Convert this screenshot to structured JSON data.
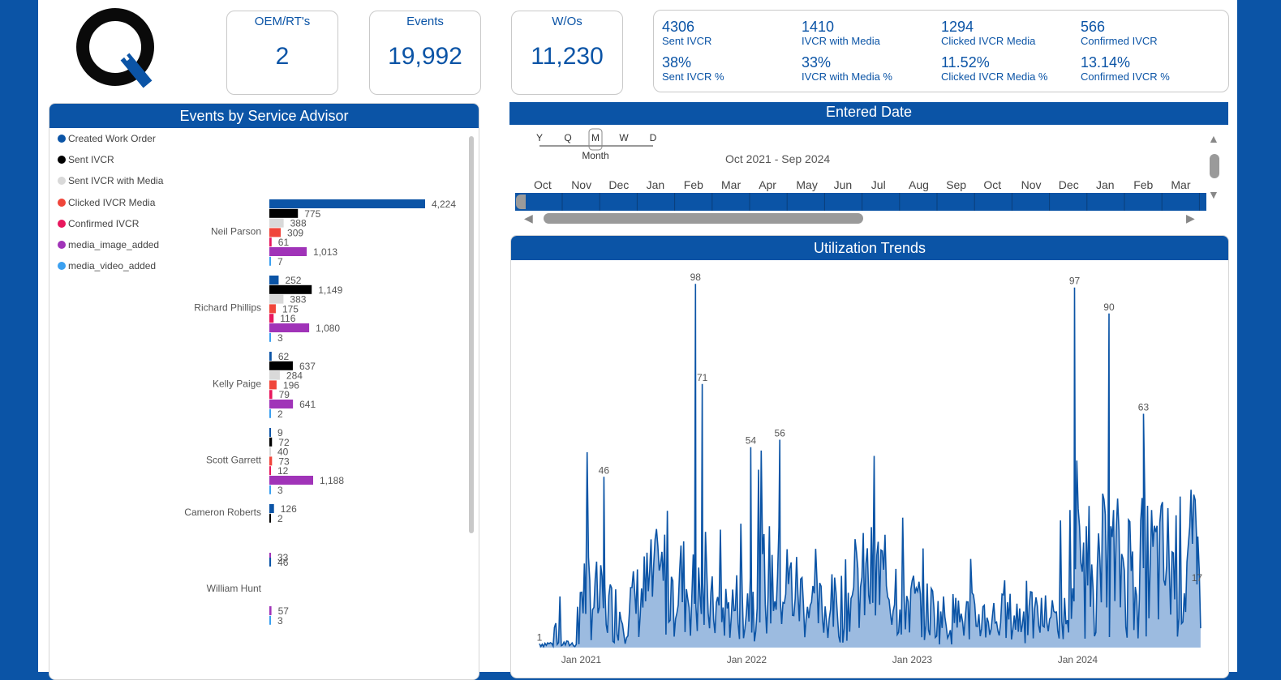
{
  "kpis": [
    {
      "label": "OEM/RT's",
      "value": "2"
    },
    {
      "label": "Events",
      "value": "19,992"
    },
    {
      "label": "W/Os",
      "value": "11,230"
    }
  ],
  "stats": [
    {
      "value": "4306",
      "label": "Sent IVCR"
    },
    {
      "value": "1410",
      "label": "IVCR with Media"
    },
    {
      "value": "1294",
      "label": "Clicked IVCR Media"
    },
    {
      "value": "566",
      "label": "Confirmed IVCR"
    },
    {
      "value": "38%",
      "label": "Sent IVCR %"
    },
    {
      "value": "33%",
      "label": "IVCR with Media %"
    },
    {
      "value": "11.52%",
      "label": "Clicked IVCR Media %"
    },
    {
      "value": "13.14%",
      "label": "Confirmed IVCR %"
    }
  ],
  "date_slicer": {
    "title": "Entered Date",
    "granularity": [
      "Y",
      "Q",
      "M",
      "W",
      "D"
    ],
    "selected_granularity": "Month",
    "range": "Oct 2021 - Sep 2024",
    "months": [
      "Oct",
      "Nov",
      "Dec",
      "Jan",
      "Feb",
      "Mar",
      "Apr",
      "May",
      "Jun",
      "Jul",
      "Aug",
      "Sep",
      "Oct",
      "Nov",
      "Dec",
      "Jan",
      "Feb",
      "Mar"
    ]
  },
  "colors": {
    "Created Work Order": "#0b54a6",
    "Sent IVCR": "#000000",
    "Sent IVCR with Media": "#d9d9d9",
    "Clicked IVCR Media": "#f0453a",
    "Confirmed IVCR": "#e8175d",
    "media_image_added": "#a033b8",
    "media_video_added": "#3ba0f0"
  },
  "chart_data": [
    {
      "type": "bar",
      "orientation": "horizontal",
      "title": "Events by Service Advisor",
      "legend": [
        "Created Work Order",
        "Sent IVCR",
        "Sent IVCR with Media",
        "Clicked IVCR Media",
        "Confirmed IVCR",
        "media_image_added",
        "media_video_added"
      ],
      "legend_position": "top-left",
      "groups": [
        {
          "name": "Neil Parson",
          "bars": [
            {
              "series": "Created Work Order",
              "value": 4224
            },
            {
              "series": "Sent IVCR",
              "value": 775
            },
            {
              "series": "Sent IVCR with Media",
              "value": 388
            },
            {
              "series": "Clicked IVCR Media",
              "value": 309
            },
            {
              "series": "Confirmed IVCR",
              "value": 61
            },
            {
              "series": "media_image_added",
              "value": 1013
            },
            {
              "series": "media_video_added",
              "value": 7
            }
          ]
        },
        {
          "name": "Richard Phillips",
          "bars": [
            {
              "series": "Created Work Order",
              "value": 252
            },
            {
              "series": "Sent IVCR",
              "value": 1149
            },
            {
              "series": "Sent IVCR with Media",
              "value": 383
            },
            {
              "series": "Clicked IVCR Media",
              "value": 175
            },
            {
              "series": "Confirmed IVCR",
              "value": 116
            },
            {
              "series": "media_image_added",
              "value": 1080
            },
            {
              "series": "media_video_added",
              "value": 3
            }
          ]
        },
        {
          "name": "Kelly Paige",
          "bars": [
            {
              "series": "Created Work Order",
              "value": 62
            },
            {
              "series": "Sent IVCR",
              "value": 637
            },
            {
              "series": "Sent IVCR with Media",
              "value": 284
            },
            {
              "series": "Clicked IVCR Media",
              "value": 196
            },
            {
              "series": "Confirmed IVCR",
              "value": 79
            },
            {
              "series": "media_image_added",
              "value": 641
            },
            {
              "series": "media_video_added",
              "value": 2
            }
          ]
        },
        {
          "name": "Scott Garrett",
          "bars": [
            {
              "series": "Created Work Order",
              "value": 9
            },
            {
              "series": "Sent IVCR",
              "value": 72
            },
            {
              "series": "Sent IVCR with Media",
              "value": 40
            },
            {
              "series": "Clicked IVCR Media",
              "value": 73
            },
            {
              "series": "Confirmed IVCR",
              "value": 12
            },
            {
              "series": "media_image_added",
              "value": 1188
            },
            {
              "series": "media_video_added",
              "value": 3
            }
          ]
        },
        {
          "name": "Cameron Roberts",
          "bars": [
            {
              "series": "Created Work Order",
              "value": 126
            },
            {
              "series": "Sent IVCR",
              "value": 2
            },
            {
              "series": "media_image_added",
              "value": 33
            }
          ]
        },
        {
          "name": "William Hunt",
          "bars": [
            {
              "series": "Created Work Order",
              "value": 46
            },
            {
              "series": "media_image_added",
              "value": 57
            },
            {
              "series": "media_video_added",
              "value": 3
            }
          ]
        }
      ]
    },
    {
      "type": "area",
      "title": "Utilization Trends",
      "x_ticks": [
        "Jan 2021",
        "Jan 2022",
        "Jan 2023",
        "Jan 2024"
      ],
      "x_domain": [
        "2020-10-01",
        "2024-09-30"
      ],
      "grid": false,
      "labeled_points": [
        {
          "x": "2020-10-01",
          "y": 1
        },
        {
          "x": "2021-02-20",
          "y": 46
        },
        {
          "x": "2021-09-10",
          "y": 98
        },
        {
          "x": "2021-09-25",
          "y": 71
        },
        {
          "x": "2022-01-10",
          "y": 54
        },
        {
          "x": "2022-03-15",
          "y": 56
        },
        {
          "x": "2023-12-25",
          "y": 97
        },
        {
          "x": "2024-03-10",
          "y": 90
        },
        {
          "x": "2024-05-25",
          "y": 63
        },
        {
          "x": "2024-09-20",
          "y": 17
        }
      ],
      "ylim": [
        0,
        100
      ]
    }
  ]
}
